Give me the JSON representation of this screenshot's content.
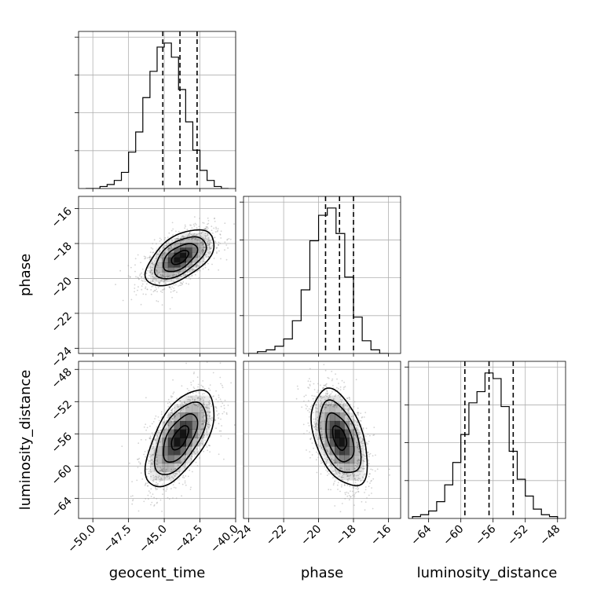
{
  "chart_data": {
    "type": "corner",
    "parameters": [
      "geocent_time",
      "phase",
      "luminosity_distance"
    ],
    "axes": {
      "geocent_time": {
        "label": "geocent_time",
        "range": [
          -51.0,
          -40.0
        ],
        "ticks": [
          -50.0,
          -47.5,
          -45.0,
          -42.5,
          -40.0
        ],
        "tick_labels": [
          "−50.0",
          "−47.5",
          "−45.0",
          "−42.5",
          "−40.0"
        ]
      },
      "phase": {
        "label": "phase",
        "range": [
          -24.3,
          -15.3
        ],
        "ticks": [
          -24,
          -22,
          -20,
          -18,
          -16
        ],
        "tick_labels": [
          "−24",
          "−22",
          "−20",
          "−18",
          "−16"
        ]
      },
      "luminosity_distance": {
        "label": "luminosity_distance",
        "range": [
          -66.5,
          -47.0
        ],
        "ticks": [
          -64,
          -60,
          -56,
          -52,
          -48
        ],
        "tick_labels": [
          "−64",
          "−60",
          "−56",
          "−52",
          "−48"
        ]
      }
    },
    "histograms": {
      "geocent_time": {
        "bins": [
          -50.5,
          -49.5,
          -49.0,
          -48.5,
          -48.0,
          -47.5,
          -47.0,
          -46.5,
          -46.0,
          -45.5,
          -45.0,
          -44.5,
          -44.0,
          -43.5,
          -43.0,
          -42.5,
          -42.0,
          -41.5,
          -41.0,
          -40.5
        ],
        "counts": [
          0,
          1,
          2,
          4,
          8,
          18,
          28,
          45,
          58,
          70,
          72,
          65,
          49,
          33,
          19,
          9,
          4,
          1,
          0
        ],
        "quantiles": [
          -45.1,
          -43.9,
          -42.7
        ]
      },
      "phase": {
        "bins": [
          -24.0,
          -23.5,
          -23.0,
          -22.5,
          -22.0,
          -21.5,
          -21.0,
          -20.5,
          -20.0,
          -19.5,
          -19.0,
          -18.5,
          -18.0,
          -17.5,
          -17.0,
          -16.5,
          -16.0
        ],
        "counts": [
          0,
          1,
          2,
          4,
          8,
          18,
          35,
          62,
          76,
          80,
          66,
          42,
          20,
          7,
          2,
          0
        ],
        "quantiles": [
          -19.6,
          -18.8,
          -18.0
        ]
      },
      "luminosity_distance": {
        "bins": [
          -66.0,
          -65.0,
          -64.0,
          -63.0,
          -62.0,
          -61.0,
          -60.0,
          -59.0,
          -58.0,
          -57.0,
          -56.0,
          -55.0,
          -54.0,
          -53.0,
          -52.0,
          -51.0,
          -50.0,
          -49.0,
          -48.0
        ],
        "counts": [
          1,
          2,
          4,
          9,
          18,
          30,
          45,
          62,
          68,
          78,
          75,
          60,
          36,
          21,
          12,
          5,
          2,
          1
        ],
        "quantiles": [
          -59.5,
          -56.5,
          -53.5
        ]
      }
    },
    "pairs": [
      {
        "x": "geocent_time",
        "y": "phase",
        "mean": [
          -43.9,
          -18.8
        ],
        "sigma": [
          1.2,
          0.8
        ],
        "rho": 0.55
      },
      {
        "x": "geocent_time",
        "y": "luminosity_distance",
        "mean": [
          -43.9,
          -56.5
        ],
        "sigma": [
          1.2,
          3.0
        ],
        "rho": 0.6
      },
      {
        "x": "phase",
        "y": "luminosity_distance",
        "mean": [
          -18.8,
          -56.5
        ],
        "sigma": [
          0.8,
          3.0
        ],
        "rho": -0.45
      }
    ],
    "grid": true,
    "contour_levels": [
      0.5,
      1.0,
      1.5,
      2.0
    ],
    "colors": {
      "density": "#000000",
      "scatter": "#9e9e9e",
      "line": "#000000",
      "grid": "#b0b0b0"
    }
  }
}
